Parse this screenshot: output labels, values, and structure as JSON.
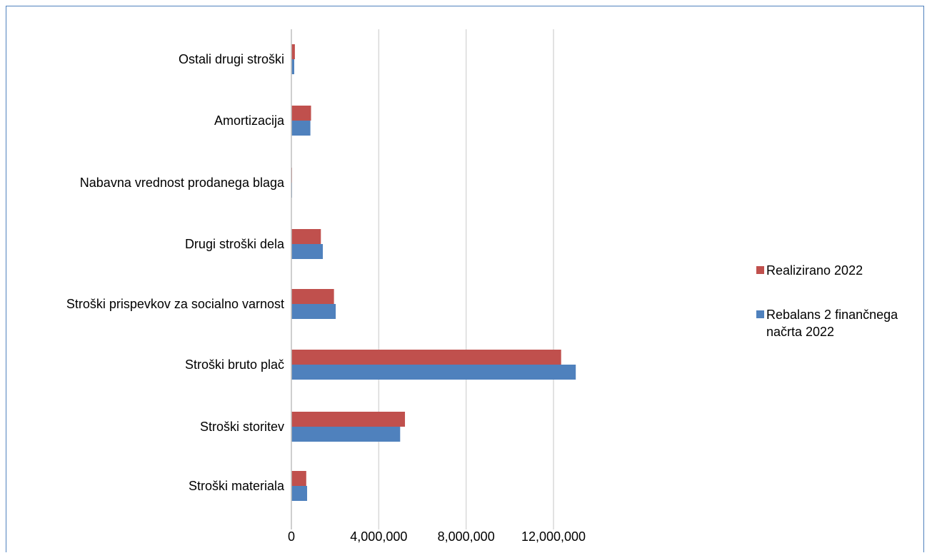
{
  "chart_data": {
    "type": "bar",
    "orientation": "horizontal",
    "categories": [
      "Stroški materiala",
      "Stroški storitev",
      "Stroški bruto plač",
      "Stroški prispevkov za socialno varnost",
      "Drugi stroški dela",
      "Nabavna vrednost prodanega blaga",
      "Amortizacija",
      "Ostali drugi stroški"
    ],
    "series": [
      {
        "name": "Realizirano 2022",
        "color": "#c0504d",
        "values": [
          680000,
          5200000,
          12350000,
          1950000,
          1350000,
          10000,
          900000,
          160000
        ]
      },
      {
        "name": "Rebalans 2 finančnega načrta 2022",
        "color": "#4f81bd",
        "values": [
          720000,
          4980000,
          13020000,
          2030000,
          1440000,
          10000,
          870000,
          130000
        ]
      }
    ],
    "xlim": [
      0,
      16000000
    ],
    "xticks": [
      0,
      4000000,
      8000000,
      12000000
    ],
    "xtick_labels": [
      "0",
      "4,000,000",
      "8,000,000",
      "12,000,000"
    ],
    "grid": true,
    "legend_position": "right"
  }
}
